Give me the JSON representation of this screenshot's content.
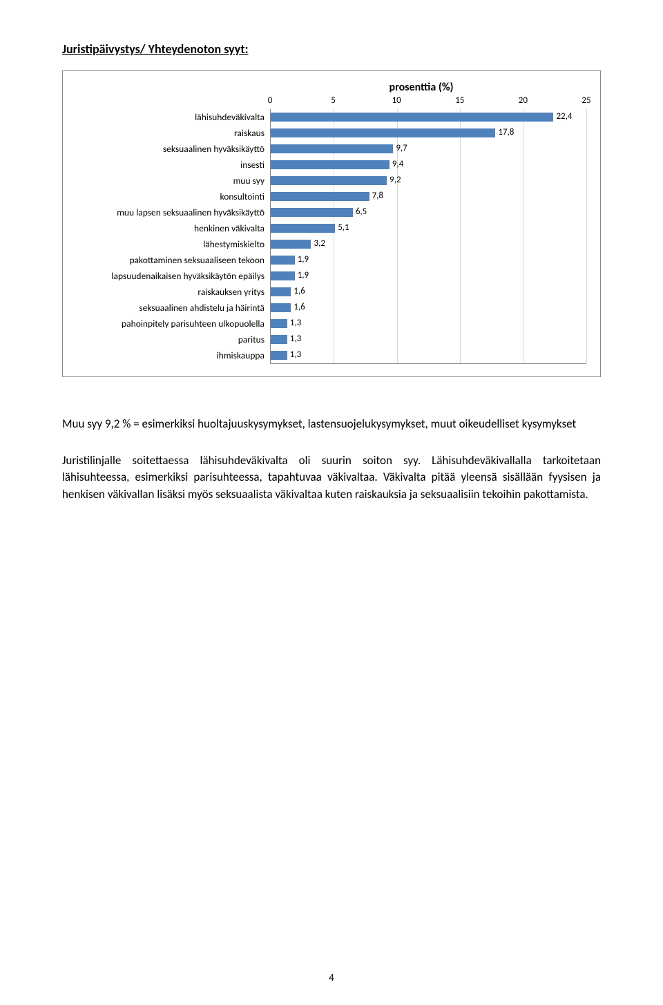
{
  "heading": "Juristipäivystys/ Yhteydenoton syyt:",
  "chart": {
    "type": "bar-horizontal",
    "title": "prosenttia (%)",
    "xlim": [
      0,
      25
    ],
    "xtick_step": 5,
    "xticks": [
      0,
      5,
      10,
      15,
      20,
      25
    ],
    "bar_color": "#4f81bd",
    "grid_color": "#d9d9d9",
    "axis_color": "#888888",
    "font_size_labels": 13,
    "items": [
      {
        "label": "lähisuhdeväkivalta",
        "value": 22.4,
        "display": "22,4"
      },
      {
        "label": "raiskaus",
        "value": 17.8,
        "display": "17,8"
      },
      {
        "label": "seksuaalinen hyväksikäyttö",
        "value": 9.7,
        "display": "9,7"
      },
      {
        "label": "insesti",
        "value": 9.4,
        "display": "9,4"
      },
      {
        "label": "muu syy",
        "value": 9.2,
        "display": "9,2"
      },
      {
        "label": "konsultointi",
        "value": 7.8,
        "display": "7,8"
      },
      {
        "label": "muu lapsen seksuaalinen hyväksikäyttö",
        "value": 6.5,
        "display": "6,5"
      },
      {
        "label": "henkinen väkivalta",
        "value": 5.1,
        "display": "5,1"
      },
      {
        "label": "lähestymiskielto",
        "value": 3.2,
        "display": "3,2"
      },
      {
        "label": "pakottaminen seksuaaliseen tekoon",
        "value": 1.9,
        "display": "1,9"
      },
      {
        "label": "lapsuudenaikaisen hyväksikäytön epäilys",
        "value": 1.9,
        "display": "1,9"
      },
      {
        "label": "raiskauksen yritys",
        "value": 1.6,
        "display": "1,6"
      },
      {
        "label": "seksuaalinen ahdistelu ja häirintä",
        "value": 1.6,
        "display": "1,6"
      },
      {
        "label": "pahoinpitely parisuhteen ulkopuolella",
        "value": 1.3,
        "display": "1,3"
      },
      {
        "label": "paritus",
        "value": 1.3,
        "display": "1,3"
      },
      {
        "label": "ihmiskauppa",
        "value": 1.3,
        "display": "1,3"
      }
    ]
  },
  "paragraph1": "Muu syy 9,2 % = esimerkiksi huoltajuuskysymykset, lastensuojelukysymykset, muut oikeudelliset kysymykset",
  "paragraph2": "Juristilinjalle soitettaessa lähisuhdeväkivalta oli suurin soiton syy. Lähisuhdeväkivallalla tarkoitetaan lähisuhteessa, esimerkiksi parisuhteessa, tapahtuvaa väkivaltaa. Väkivalta pitää yleensä sisällään fyysisen ja henkisen väkivallan lisäksi myös seksuaalista väkivaltaa kuten raiskauksia ja seksuaalisiin tekoihin pakottamista.",
  "page_number": "4",
  "colors": {
    "text": "#000000",
    "background": "#ffffff"
  }
}
